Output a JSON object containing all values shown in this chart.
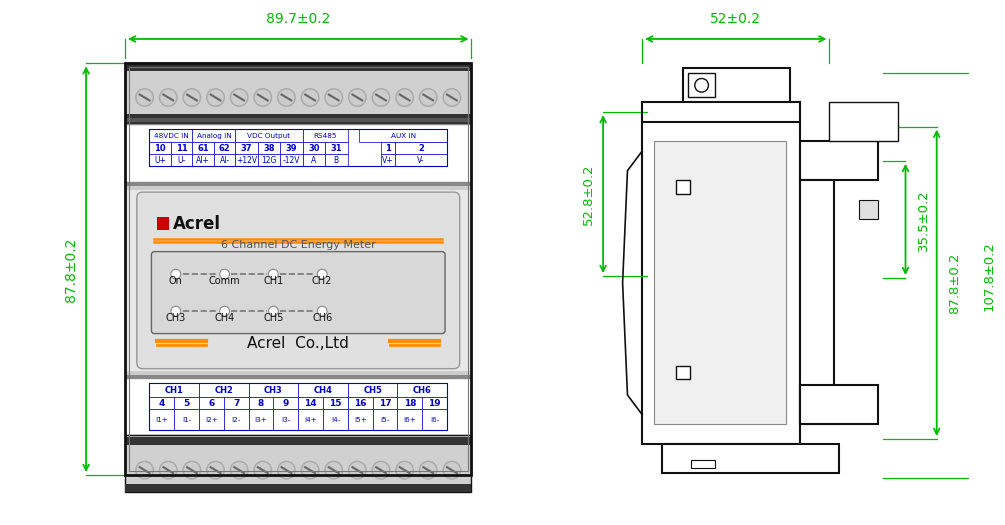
{
  "bg_color": "#ffffff",
  "green": "#00bb00",
  "orange": "#ff8c00",
  "blue": "#0000cc",
  "dark": "#111111",
  "red": "#cc0000",
  "dim_top": "89.7±0.2",
  "dim_left": "87.8±0.2",
  "dim_right_top": "52±0.2",
  "dim_side_1": "52.8±0.2",
  "dim_side_2": "35.5±0.2",
  "dim_side_3": "87.8±0.2",
  "dim_side_4": "107.8±0.2",
  "top_headers": [
    "48VDC IN",
    "Analog IN",
    "VDC Output",
    "RS485",
    "AUX IN"
  ],
  "top_row1": [
    "10",
    "11",
    "61",
    "62",
    "37",
    "38",
    "39",
    "30",
    "31",
    "1",
    "2"
  ],
  "top_row2": [
    "U+",
    "U-",
    "AI+",
    "AI-",
    "+12V",
    "12G",
    "-12V",
    "A",
    "B",
    "V+",
    "V-"
  ],
  "bot_ch_labels": [
    "CH1",
    "CH2",
    "CH3",
    "CH4",
    "CH5",
    "CH6"
  ],
  "bot_row1": [
    "4",
    "5",
    "6",
    "7",
    "8",
    "9",
    "14",
    "15",
    "16",
    "17",
    "18",
    "19"
  ],
  "bot_row2": [
    "I1+",
    "I1-",
    "I2+",
    "I2-",
    "I3+",
    "I3-",
    "I4+",
    "I4-",
    "I5+",
    "I5-",
    "I6+",
    "I6-"
  ],
  "display_title": "6 Channel DC Energy Meter",
  "display_brand": "Acrel",
  "display_bottom": "Acrel  Co.,Ltd",
  "led_labels_row1": [
    "On",
    "Comm",
    "CH1",
    "CH2"
  ],
  "led_labels_row2": [
    "CH3",
    "CH4",
    "CH5",
    "CH6"
  ]
}
